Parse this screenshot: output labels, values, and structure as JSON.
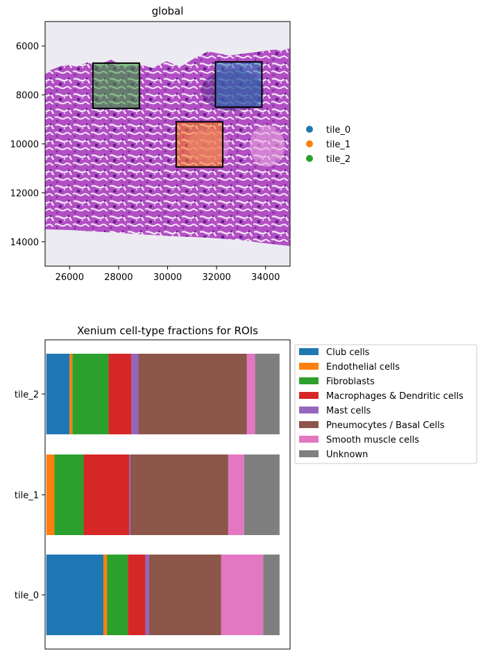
{
  "chart_data": [
    {
      "type": "image",
      "title": "global",
      "xlim": [
        25000,
        35000
      ],
      "ylim": [
        15000,
        5000
      ],
      "x_ticks": [
        26000,
        28000,
        30000,
        32000,
        34000
      ],
      "y_ticks": [
        6000,
        8000,
        10000,
        12000,
        14000
      ],
      "grid": false,
      "legend_position": "right",
      "legend": [
        {
          "name": "tile_0",
          "color": "#1f77b4"
        },
        {
          "name": "tile_1",
          "color": "#ff7f0e"
        },
        {
          "name": "tile_2",
          "color": "#2ca02c"
        }
      ],
      "rois": [
        {
          "name": "tile_0",
          "color": "#1f77b4",
          "x": [
            31950,
            33850
          ],
          "y": [
            6650,
            8500
          ]
        },
        {
          "name": "tile_1",
          "color": "#ff7f0e",
          "x": [
            30350,
            32250
          ],
          "y": [
            9100,
            10950
          ]
        },
        {
          "name": "tile_2",
          "color": "#2ca02c",
          "x": [
            26950,
            28850
          ],
          "y": [
            6700,
            8550
          ]
        }
      ]
    },
    {
      "type": "bar",
      "orientation": "horizontal",
      "stacked": true,
      "title": "Xenium cell-type fractions for ROIs",
      "categories": [
        "tile_0",
        "tile_1",
        "tile_2"
      ],
      "xlim": [
        -0.005,
        1.045
      ],
      "legend_position": "outside-top-right",
      "series": [
        {
          "name": "Club cells",
          "color": "#1f77b4",
          "values": [
            0.245,
            0.0,
            0.1
          ]
        },
        {
          "name": "Endothelial cells",
          "color": "#ff7f0e",
          "values": [
            0.015,
            0.035,
            0.012
          ]
        },
        {
          "name": "Fibroblasts",
          "color": "#2ca02c",
          "values": [
            0.09,
            0.125,
            0.155
          ]
        },
        {
          "name": "Macrophages & Dendritic cells",
          "color": "#d62728",
          "values": [
            0.075,
            0.195,
            0.098
          ]
        },
        {
          "name": "Mast cells",
          "color": "#9467bd",
          "values": [
            0.015,
            0.005,
            0.03
          ]
        },
        {
          "name": "Pneumocytes / Basal Cells",
          "color": "#8c564b",
          "values": [
            0.31,
            0.42,
            0.465
          ]
        },
        {
          "name": "Smooth muscle cells",
          "color": "#e377c2",
          "values": [
            0.18,
            0.068,
            0.035
          ]
        },
        {
          "name": "Unknown",
          "color": "#7f7f7f",
          "values": [
            0.07,
            0.152,
            0.105
          ]
        }
      ]
    }
  ]
}
